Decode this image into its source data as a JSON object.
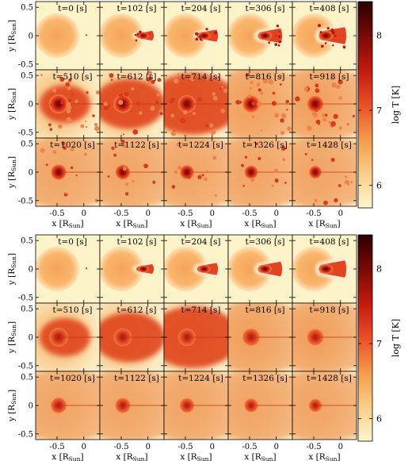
{
  "figure": {
    "colorbar": {
      "label": "log T [K]",
      "ticks": [
        "6",
        "7",
        "8"
      ],
      "tick_values": [
        6,
        7,
        8
      ],
      "range": [
        5.7,
        8.45
      ],
      "colors": [
        "#fdf6ce",
        "#f9ce88",
        "#f29c4a",
        "#e85028",
        "#c21a10",
        "#7a0a05",
        "#2a0000"
      ]
    },
    "y_axis": {
      "label_main": "y [R",
      "label_sub": "Sun",
      "label_end": "]",
      "ticks": [
        "0.5",
        "0",
        "-0.5"
      ],
      "tick_values": [
        0.5,
        0,
        -0.5
      ],
      "range": [
        -0.6,
        0.6
      ]
    },
    "x_axis": {
      "label_main": "x [R",
      "label_sub": "Sun",
      "label_end": "]",
      "ticks": [
        "-0.5",
        "0"
      ],
      "tick_values": [
        -0.5,
        0
      ],
      "range": [
        -0.9,
        0.3
      ]
    },
    "times": [
      "t=0 [s]",
      "t=102 [s]",
      "t=204 [s]",
      "t=306 [s]",
      "t=408 [s]",
      "t=510 [s]",
      "t=612 [s]",
      "t=714 [s]",
      "t=816 [s]",
      "t=918 [s]",
      "t=1020 [s]",
      "t=1122 [s]",
      "t=1224 [s]",
      "t=1326 [s]",
      "t=1428 [s]"
    ],
    "time_values": [
      0,
      102,
      204,
      306,
      408,
      510,
      612,
      714,
      816,
      918,
      1020,
      1122,
      1224,
      1326,
      1428
    ],
    "panels": [
      {
        "name": "top",
        "variant": "clumpy"
      },
      {
        "name": "bottom",
        "variant": "smooth"
      }
    ]
  }
}
